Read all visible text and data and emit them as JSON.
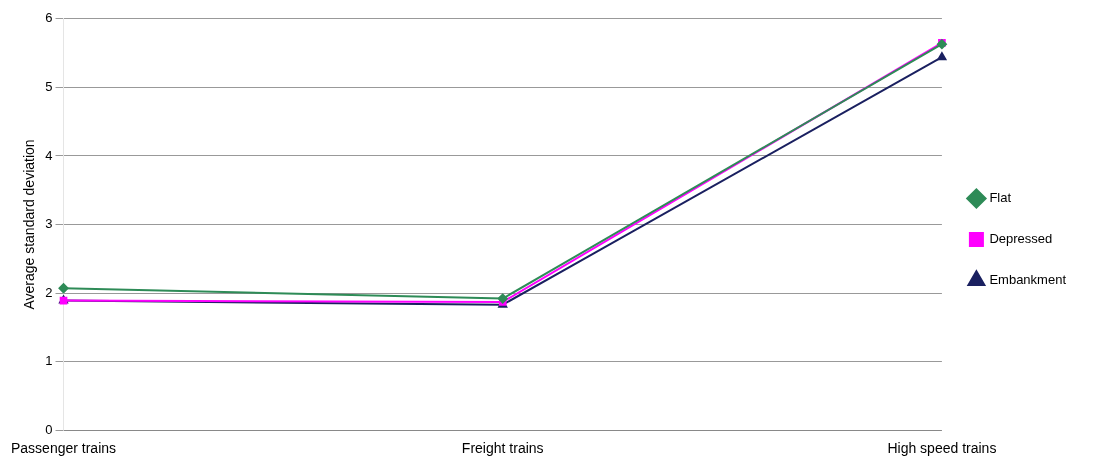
{
  "chart_data": {
    "type": "line",
    "ylabel": "Average standard deviation",
    "categories": [
      "Passenger trains",
      "Freight trains",
      "High speed trains"
    ],
    "series": [
      {
        "name": "Flat",
        "color": "#2e8b57",
        "values": [
          2.07,
          1.92,
          5.63
        ],
        "marker": "diamond"
      },
      {
        "name": "Depressed",
        "color": "#ff00ff",
        "values": [
          1.89,
          1.87,
          5.65
        ],
        "marker": "square"
      },
      {
        "name": "Embankment",
        "color": "#1a2060",
        "values": [
          1.89,
          1.83,
          5.44
        ],
        "marker": "triangle"
      }
    ],
    "ylim": [
      0,
      6
    ],
    "yticks": [
      0,
      1,
      2,
      3,
      4,
      5,
      6
    ],
    "grid": "y",
    "legend": "right",
    "line_style": "solid"
  }
}
